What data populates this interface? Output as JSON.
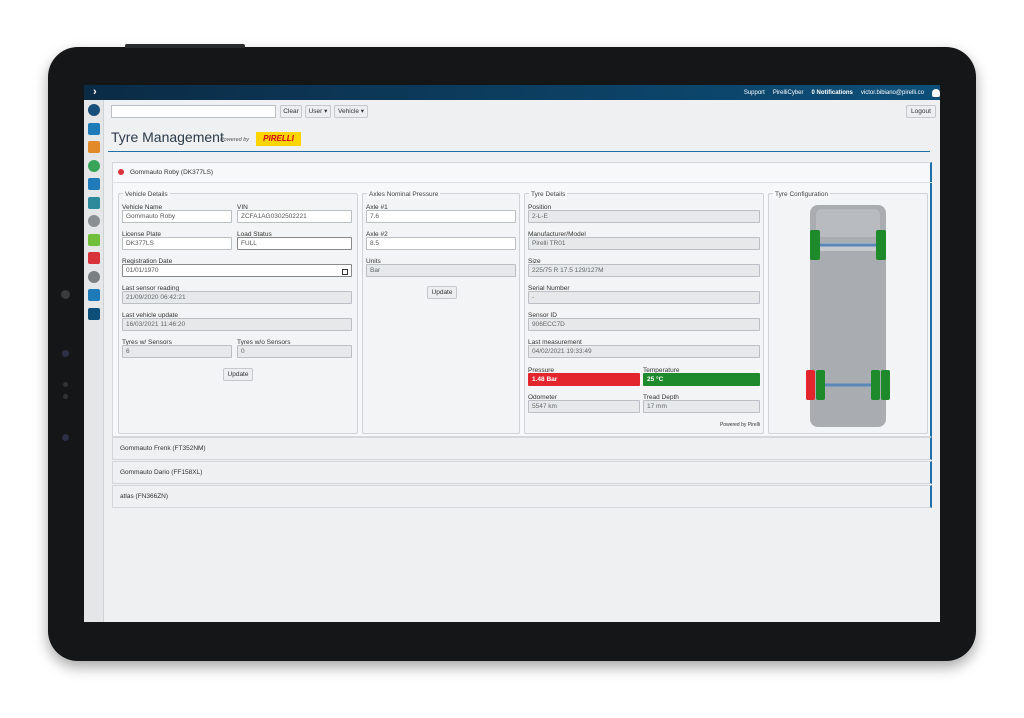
{
  "top_bar": {
    "links": [
      "Support",
      "PirelliCyber",
      "0 Notifications",
      "victor.bibiano@pirelli.co"
    ]
  },
  "toolbar": {
    "buttons": [
      "Clear",
      "User ▾",
      "Vehicle ▾"
    ],
    "logout": "Logout"
  },
  "header": {
    "title": "Tyre Management",
    "powered_by": "Powered by",
    "brand": "PIRELLI"
  },
  "vehicle_list": [
    "Gommauto Roby (DK377LS)",
    "Gommauto Frenk (FT352NM)",
    "Gommauto Dario (FF158XL)",
    "atlas (FN366ZN)"
  ],
  "vehicle_details": {
    "title": "Vehicle Details",
    "fields": [
      {
        "label": "Vehicle Name",
        "value": "Gommauto Roby"
      },
      {
        "label": "VIN",
        "value": "ZCFA1AG0302502221"
      },
      {
        "label": "License Plate",
        "value": "DK377LS"
      },
      {
        "label": "Load Status",
        "value": "FULL"
      },
      {
        "label": "Registration Date",
        "value": "01/01/1970"
      },
      {
        "label": "Last sensor reading",
        "value": "21/09/2020 06:42:21"
      },
      {
        "label": "Last vehicle update",
        "value": "16/03/2021 11:46:20"
      },
      {
        "label": "Tyres w/ Sensors",
        "value": "6"
      },
      {
        "label": "Tyres w/o Sensors",
        "value": "0"
      }
    ],
    "button": "Update"
  },
  "axles": {
    "title": "Axles Nominal Pressure",
    "fields": [
      {
        "label": "Axle #1",
        "value": "7.6"
      },
      {
        "label": "Axle #2",
        "value": "8.5"
      },
      {
        "label": "Units",
        "value": "Bar"
      }
    ],
    "button": "Update"
  },
  "tyre_details": {
    "title": "Tyre Details",
    "fields": [
      {
        "label": "Position",
        "value": "2-L-E"
      },
      {
        "label": "Manufacturer/Model",
        "value": "Pirelli TR01"
      },
      {
        "label": "Size",
        "value": "225/75 R 17.5 129/127M"
      },
      {
        "label": "Serial Number",
        "value": "-"
      },
      {
        "label": "Sensor ID",
        "value": "906ECC7D"
      },
      {
        "label": "Last measurement",
        "value": "04/02/2021 19:33:49"
      },
      {
        "label": "Pressure",
        "value": "1.48 Bar"
      },
      {
        "label": "Temperature",
        "value": "25 °C"
      },
      {
        "label": "Odometer",
        "value": "5547 km"
      },
      {
        "label": "Tread Depth",
        "value": "17 mm"
      }
    ],
    "footer": "Powered by Pirelli"
  },
  "tyre_configuration": {
    "title": "Tyre Configuration"
  }
}
